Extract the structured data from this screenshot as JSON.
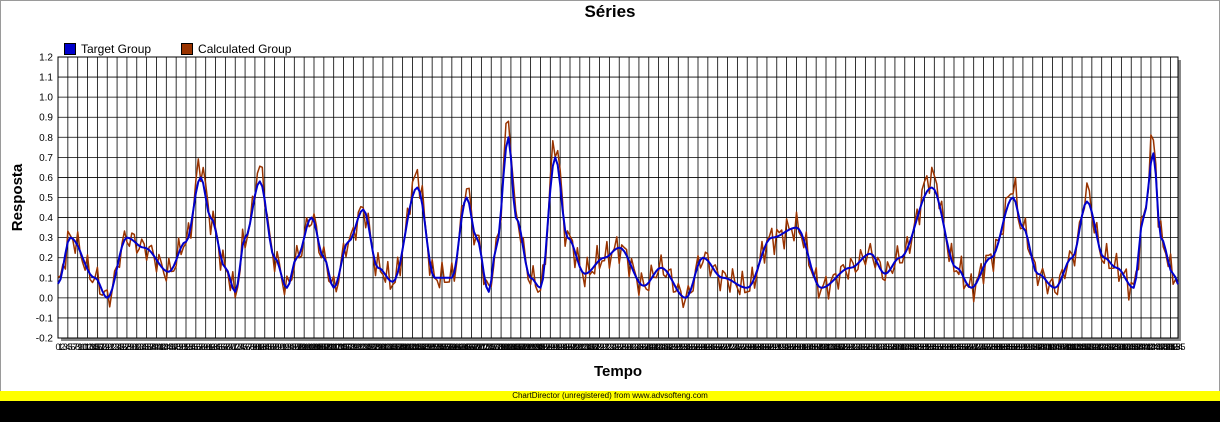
{
  "chart_data": {
    "type": "line",
    "title": "Séries",
    "xlabel": "Tempo",
    "ylabel": "Resposta",
    "ylim": [
      -0.2,
      1.2
    ],
    "yticks": [
      "-0.2",
      "-0.1",
      "0.0",
      "0.1",
      "0.2",
      "0.3",
      "0.4",
      "0.5",
      "0.6",
      "0.7",
      "0.8",
      "0.9",
      "1.0",
      "1.1",
      "1.2"
    ],
    "x_count": 456,
    "grid": true,
    "legend_position": "top-left",
    "series": [
      {
        "name": "Target Group",
        "color": "#0000cc",
        "peaks": [
          [
            0,
            0.07
          ],
          [
            5,
            0.3
          ],
          [
            15,
            0.1
          ],
          [
            20,
            0.0
          ],
          [
            28,
            0.3
          ],
          [
            35,
            0.25
          ],
          [
            45,
            0.13
          ],
          [
            52,
            0.28
          ],
          [
            58,
            0.6
          ],
          [
            62,
            0.4
          ],
          [
            68,
            0.15
          ],
          [
            72,
            0.03
          ],
          [
            76,
            0.3
          ],
          [
            82,
            0.58
          ],
          [
            88,
            0.2
          ],
          [
            93,
            0.05
          ],
          [
            97,
            0.2
          ],
          [
            103,
            0.4
          ],
          [
            108,
            0.2
          ],
          [
            112,
            0.05
          ],
          [
            118,
            0.28
          ],
          [
            124,
            0.44
          ],
          [
            130,
            0.15
          ],
          [
            136,
            0.08
          ],
          [
            146,
            0.55
          ],
          [
            153,
            0.1
          ],
          [
            160,
            0.1
          ],
          [
            166,
            0.5
          ],
          [
            170,
            0.3
          ],
          [
            175,
            0.03
          ],
          [
            178,
            0.25
          ],
          [
            183,
            0.8
          ],
          [
            186,
            0.4
          ],
          [
            192,
            0.1
          ],
          [
            196,
            0.05
          ],
          [
            202,
            0.7
          ],
          [
            207,
            0.3
          ],
          [
            214,
            0.12
          ],
          [
            222,
            0.2
          ],
          [
            228,
            0.25
          ],
          [
            238,
            0.06
          ],
          [
            245,
            0.15
          ],
          [
            255,
            0.0
          ],
          [
            262,
            0.2
          ],
          [
            270,
            0.1
          ],
          [
            280,
            0.05
          ],
          [
            290,
            0.3
          ],
          [
            300,
            0.35
          ],
          [
            310,
            0.05
          ],
          [
            322,
            0.15
          ],
          [
            330,
            0.22
          ],
          [
            336,
            0.12
          ],
          [
            342,
            0.2
          ],
          [
            355,
            0.55
          ],
          [
            365,
            0.15
          ],
          [
            371,
            0.05
          ],
          [
            379,
            0.2
          ],
          [
            388,
            0.5
          ],
          [
            392,
            0.35
          ],
          [
            398,
            0.12
          ],
          [
            405,
            0.05
          ],
          [
            412,
            0.2
          ],
          [
            418,
            0.48
          ],
          [
            425,
            0.2
          ],
          [
            430,
            0.15
          ],
          [
            437,
            0.05
          ],
          [
            441,
            0.4
          ],
          [
            445,
            0.72
          ],
          [
            448,
            0.3
          ],
          [
            453,
            0.12
          ],
          [
            456,
            0.05
          ]
        ]
      },
      {
        "name": "Calculated Group",
        "color": "#993300",
        "peaks": []
      }
    ]
  },
  "footer": "ChartDirector (unregistered) from www.advsofteng.com"
}
